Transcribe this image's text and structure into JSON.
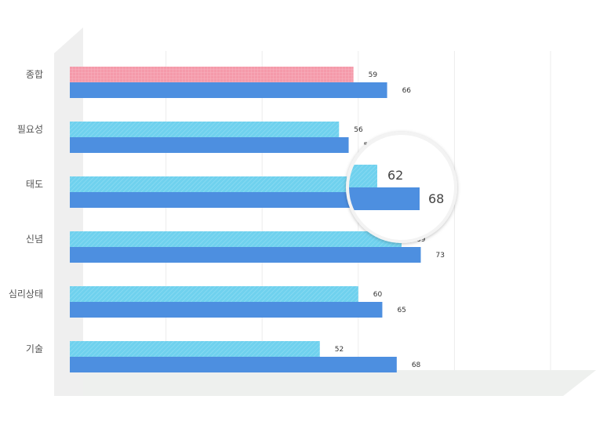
{
  "chart_data": {
    "type": "bar",
    "orientation": "horizontal",
    "categories": [
      "종합",
      "필요성",
      "태도",
      "신념",
      "심리상태",
      "기술"
    ],
    "series": [
      {
        "values": [
          59,
          56,
          62,
          69,
          60,
          52
        ]
      },
      {
        "values": [
          66,
          58,
          68,
          73,
          65,
          68
        ]
      }
    ],
    "xlim": [
      0,
      100
    ],
    "grid": true,
    "legend": "none"
  },
  "colors": {
    "primary": "#4d8fe0",
    "secondary": "#6fd1ee",
    "highlight": "#f59aaa"
  },
  "magnifier": {
    "a": "62",
    "b": "68"
  }
}
